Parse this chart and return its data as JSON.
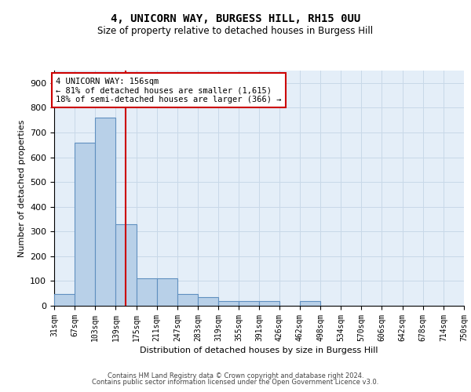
{
  "title": "4, UNICORN WAY, BURGESS HILL, RH15 0UU",
  "subtitle": "Size of property relative to detached houses in Burgess Hill",
  "xlabel": "Distribution of detached houses by size in Burgess Hill",
  "ylabel": "Number of detached properties",
  "bar_edges": [
    31,
    67,
    103,
    139,
    175,
    211,
    247,
    283,
    319,
    355,
    391,
    426,
    462,
    498,
    534,
    570,
    606,
    642,
    678,
    714,
    750
  ],
  "bar_heights": [
    48,
    660,
    760,
    330,
    110,
    110,
    48,
    35,
    20,
    18,
    18,
    0,
    18,
    0,
    0,
    0,
    0,
    0,
    0,
    0
  ],
  "bar_color": "#b8d0e8",
  "bar_edge_color": "#6090c0",
  "property_line_x": 156,
  "property_line_color": "#cc0000",
  "annotation_line1": "4 UNICORN WAY: 156sqm",
  "annotation_line2": "← 81% of detached houses are smaller (1,615)",
  "annotation_line3": "18% of semi-detached houses are larger (366) →",
  "ylim": [
    0,
    950
  ],
  "yticks": [
    0,
    100,
    200,
    300,
    400,
    500,
    600,
    700,
    800,
    900
  ],
  "tick_labels": [
    "31sqm",
    "67sqm",
    "103sqm",
    "139sqm",
    "175sqm",
    "211sqm",
    "247sqm",
    "283sqm",
    "319sqm",
    "355sqm",
    "391sqm",
    "426sqm",
    "462sqm",
    "498sqm",
    "534sqm",
    "570sqm",
    "606sqm",
    "642sqm",
    "678sqm",
    "714sqm",
    "750sqm"
  ],
  "footer_line1": "Contains HM Land Registry data © Crown copyright and database right 2024.",
  "footer_line2": "Contains public sector information licensed under the Open Government Licence v3.0.",
  "background_color": "#ffffff",
  "grid_color": "#c8d8e8",
  "axes_bg_color": "#e4eef8",
  "annot_box_edgecolor": "#cc0000",
  "annot_fontsize": 7.5,
  "title_fontsize": 10,
  "subtitle_fontsize": 8.5,
  "ylabel_fontsize": 8,
  "xlabel_fontsize": 8,
  "tick_fontsize": 7,
  "footer_fontsize": 6
}
